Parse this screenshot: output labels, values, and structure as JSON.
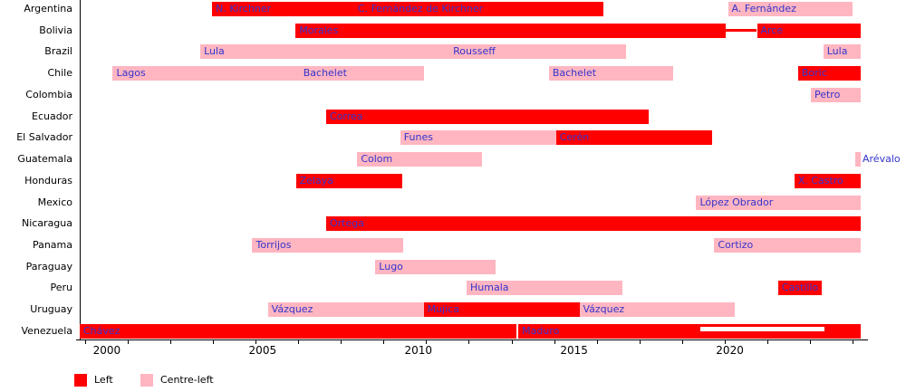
{
  "colors": {
    "left": "#ff0000",
    "centre_left": "#ffb6c1",
    "bar_label_text": "#3333cc",
    "axis": "#000000",
    "background": "#ffffff"
  },
  "legend": {
    "items": [
      {
        "label": "Left",
        "type": "left"
      },
      {
        "label": "Centre-left",
        "type": "centre_left"
      }
    ]
  },
  "chart_data": {
    "type": "timeline-gantt",
    "title": "",
    "xlabel": "",
    "ylabel": "",
    "x_axis": {
      "range": [
        1999.13,
        2024.2
      ],
      "major_ticks": [
        2000,
        2005,
        2010,
        2015,
        2020
      ],
      "minor_tick_start": 1999.3,
      "minor_tick_step": 1.369
    },
    "categories": [
      "Argentina",
      "Bolivia",
      "Brazil",
      "Chile",
      "Colombia",
      "Ecuador",
      "El Salvador",
      "Guatemala",
      "Honduras",
      "Mexico",
      "Nicaragua",
      "Panama",
      "Paraguay",
      "Peru",
      "Uruguay",
      "Venezuela"
    ],
    "bars": [
      {
        "country": "Argentina",
        "label": "N. Kirchner",
        "type": "left",
        "start": 2003.38,
        "end": 2007.94
      },
      {
        "country": "Argentina",
        "label": "C. Fernández de Kirchner",
        "type": "left",
        "start": 2007.94,
        "end": 2015.94
      },
      {
        "country": "Argentina",
        "label": "A. Fernández",
        "type": "centre_left",
        "start": 2019.94,
        "end": 2023.94
      },
      {
        "country": "Bolivia",
        "label": "Morales",
        "type": "left",
        "start": 2006.06,
        "end": 2019.88
      },
      {
        "country": "Bolivia",
        "label": "Arce",
        "type": "left",
        "start": 2020.87,
        "end": 2024.2
      },
      {
        "country": "Brazil",
        "label": "Lula",
        "type": "centre_left",
        "start": 2003.0,
        "end": 2011.0
      },
      {
        "country": "Brazil",
        "label": "Rousseff",
        "type": "centre_left",
        "start": 2011.0,
        "end": 2016.66
      },
      {
        "country": "Brazil",
        "label": "Lula",
        "type": "centre_left",
        "start": 2023.0,
        "end": 2024.2
      },
      {
        "country": "Chile",
        "label": "Lagos",
        "type": "centre_left",
        "start": 2000.19,
        "end": 2006.19
      },
      {
        "country": "Chile",
        "label": "Bachelet",
        "type": "centre_left",
        "start": 2006.19,
        "end": 2010.19
      },
      {
        "country": "Chile",
        "label": "Bachelet",
        "type": "centre_left",
        "start": 2014.19,
        "end": 2018.19
      },
      {
        "country": "Chile",
        "label": "Boric",
        "type": "left",
        "start": 2022.19,
        "end": 2024.2
      },
      {
        "country": "Colombia",
        "label": "Petro",
        "type": "centre_left",
        "start": 2022.6,
        "end": 2024.2
      },
      {
        "country": "Ecuador",
        "label": "Correa",
        "type": "left",
        "start": 2007.04,
        "end": 2017.4
      },
      {
        "country": "El Salvador",
        "label": "Funes",
        "type": "centre_left",
        "start": 2009.42,
        "end": 2014.42
      },
      {
        "country": "El Salvador",
        "label": "Cerén",
        "type": "left",
        "start": 2014.42,
        "end": 2019.42
      },
      {
        "country": "Guatemala",
        "label": "Colom",
        "type": "centre_left",
        "start": 2008.04,
        "end": 2012.04
      },
      {
        "country": "Guatemala",
        "label": "Arévalo",
        "type": "centre_left",
        "start": 2024.04,
        "end": 2024.2,
        "label_outside": true
      },
      {
        "country": "Honduras",
        "label": "Zelaya",
        "type": "left",
        "start": 2006.07,
        "end": 2009.48
      },
      {
        "country": "Honduras",
        "label": "X. Castro",
        "type": "left",
        "start": 2022.07,
        "end": 2024.2
      },
      {
        "country": "Mexico",
        "label": "López Obrador",
        "type": "centre_left",
        "start": 2018.92,
        "end": 2024.2
      },
      {
        "country": "Nicaragua",
        "label": "Ortega",
        "type": "left",
        "start": 2007.04,
        "end": 2024.2
      },
      {
        "country": "Panama",
        "label": "Torrijos",
        "type": "centre_left",
        "start": 2004.67,
        "end": 2009.5
      },
      {
        "country": "Panama",
        "label": "Cortizo",
        "type": "centre_left",
        "start": 2019.5,
        "end": 2024.2
      },
      {
        "country": "Paraguay",
        "label": "Lugo",
        "type": "centre_left",
        "start": 2008.62,
        "end": 2012.47
      },
      {
        "country": "Peru",
        "label": "Humala",
        "type": "centre_left",
        "start": 2011.55,
        "end": 2016.55
      },
      {
        "country": "Peru",
        "label": "Castillo",
        "type": "left",
        "start": 2021.55,
        "end": 2022.94
      },
      {
        "country": "Uruguay",
        "label": "Vázquez",
        "type": "centre_left",
        "start": 2005.17,
        "end": 2010.17
      },
      {
        "country": "Uruguay",
        "label": "Mujica",
        "type": "left",
        "start": 2010.17,
        "end": 2015.17
      },
      {
        "country": "Uruguay",
        "label": "Vázquez",
        "type": "centre_left",
        "start": 2015.17,
        "end": 2020.17
      },
      {
        "country": "Venezuela",
        "label": "Chávez",
        "type": "left",
        "start": 1999.13,
        "end": 2013.15
      },
      {
        "country": "Venezuela",
        "label": "Maduro",
        "type": "left",
        "start": 2013.21,
        "end": 2024.2
      }
    ],
    "annotations": {
      "gap_connector": {
        "country": "Bolivia",
        "start": 2019.88,
        "end": 2020.87,
        "color": "#ff0000"
      },
      "white_stripe": {
        "country": "Venezuela",
        "start": 2019.05,
        "end": 2023.05,
        "color": "#ffffff"
      }
    },
    "legend_position": "bottom-left",
    "grid": false
  }
}
